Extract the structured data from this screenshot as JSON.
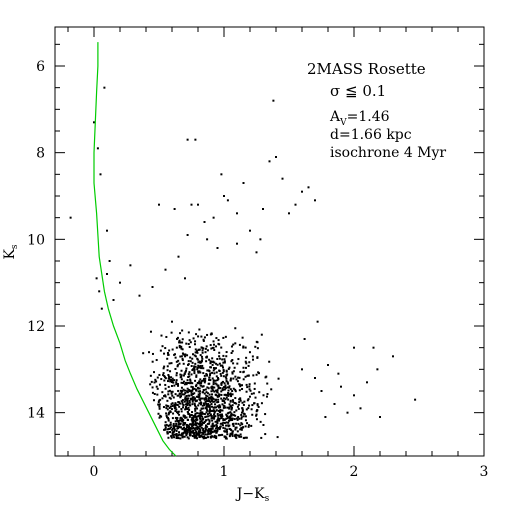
{
  "chart_data": {
    "type": "scatter",
    "title": "2MASS Rosette",
    "annotations": [
      "σ ≦ 0.1",
      "A",
      "V",
      "=1.46",
      "d=1.66 kpc",
      "isochrone 4 Myr"
    ],
    "xlabel_main": "J−K",
    "xlabel_sub": "s",
    "ylabel_main": "K",
    "ylabel_sub": "s",
    "xlim": [
      -0.3,
      3.0
    ],
    "ylim": [
      15.0,
      5.1
    ],
    "y_inverted": true,
    "x_ticks": [
      0,
      1,
      2,
      3
    ],
    "x_tick_labels": [
      "0",
      "1",
      "2",
      "3"
    ],
    "y_ticks": [
      6,
      8,
      10,
      12,
      14
    ],
    "y_tick_labels": [
      "6",
      "8",
      "10",
      "12",
      "14"
    ],
    "grid": false,
    "isochrone": {
      "name": "isochrone 4 Myr",
      "color": "#00cc00",
      "x": [
        0.03,
        0.03,
        0.02,
        0.01,
        0.0,
        0.0,
        0.02,
        0.03,
        0.04,
        0.06,
        0.08,
        0.11,
        0.15,
        0.2,
        0.24,
        0.28,
        0.33,
        0.38,
        0.43,
        0.48,
        0.53,
        0.58,
        0.63
      ],
      "y": [
        5.45,
        6.0,
        6.6,
        7.3,
        8.0,
        8.7,
        9.4,
        9.9,
        10.4,
        10.8,
        11.2,
        11.6,
        12.0,
        12.4,
        12.8,
        13.1,
        13.45,
        13.75,
        14.05,
        14.35,
        14.65,
        14.85,
        15.0
      ]
    },
    "series": [
      {
        "kind": "isolated-stars",
        "x": [
          -0.18,
          0.0,
          0.03,
          0.05,
          0.08,
          0.1,
          0.12,
          0.02,
          0.04,
          0.06,
          0.1,
          0.15,
          0.2,
          0.28,
          0.35,
          0.45,
          0.55,
          0.65,
          0.72,
          0.8,
          0.87,
          0.92,
          0.95,
          0.72,
          0.78,
          0.98,
          1.03,
          1.1,
          1.15,
          1.2,
          1.25,
          1.3,
          1.35,
          1.45,
          1.55,
          1.65,
          1.7,
          1.1,
          1.0,
          0.85,
          0.62,
          0.5,
          1.5,
          1.6,
          1.38,
          1.4,
          0.75,
          0.7,
          1.28,
          0.6
        ],
        "y": [
          9.5,
          7.3,
          7.9,
          8.5,
          6.5,
          9.8,
          10.5,
          10.9,
          11.2,
          11.6,
          10.8,
          11.4,
          11.0,
          10.6,
          11.3,
          11.1,
          10.7,
          10.4,
          9.9,
          9.2,
          10.0,
          9.5,
          10.2,
          7.7,
          7.7,
          8.5,
          9.1,
          9.4,
          8.7,
          9.8,
          10.3,
          9.3,
          8.2,
          8.6,
          9.2,
          8.8,
          9.1,
          10.1,
          9.0,
          9.6,
          9.3,
          9.2,
          9.4,
          8.9,
          6.8,
          8.1,
          9.2,
          10.9,
          10.0,
          11.9
        ]
      },
      {
        "kind": "red-outliers",
        "x": [
          1.6,
          1.7,
          1.75,
          1.8,
          1.85,
          1.9,
          1.95,
          2.0,
          2.05,
          2.1,
          2.15,
          2.2,
          2.3,
          2.47,
          2.18,
          1.78,
          1.62,
          1.72,
          1.88,
          2.0
        ],
        "y": [
          13.0,
          13.2,
          13.5,
          12.9,
          13.8,
          13.4,
          14.0,
          13.6,
          13.9,
          13.3,
          12.5,
          14.1,
          12.7,
          13.7,
          13.0,
          14.1,
          12.3,
          11.9,
          13.1,
          12.5
        ]
      },
      {
        "kind": "main-clump-generated",
        "count": 1400,
        "x_center": 0.85,
        "x_spread": 0.35,
        "y_range": [
          12.0,
          14.6
        ],
        "x_min": 0.2,
        "x_max": 1.65
      }
    ]
  }
}
